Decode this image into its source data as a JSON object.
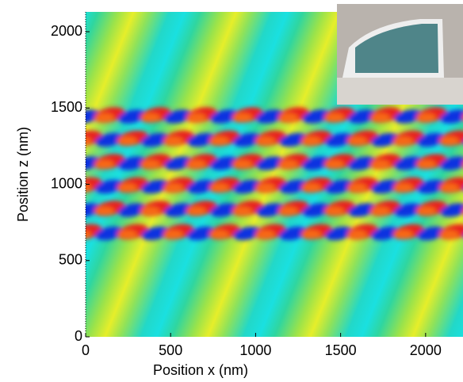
{
  "chart_data": {
    "type": "heatmap",
    "xlabel": "Position x (nm)",
    "ylabel": "Position z (nm)",
    "xlim": [
      0,
      2220
    ],
    "ylim": [
      0,
      2130
    ],
    "xticks": [
      0,
      500,
      1000,
      1500,
      2000
    ],
    "yticks": [
      0,
      500,
      1000,
      1500,
      2000
    ]
  }
}
